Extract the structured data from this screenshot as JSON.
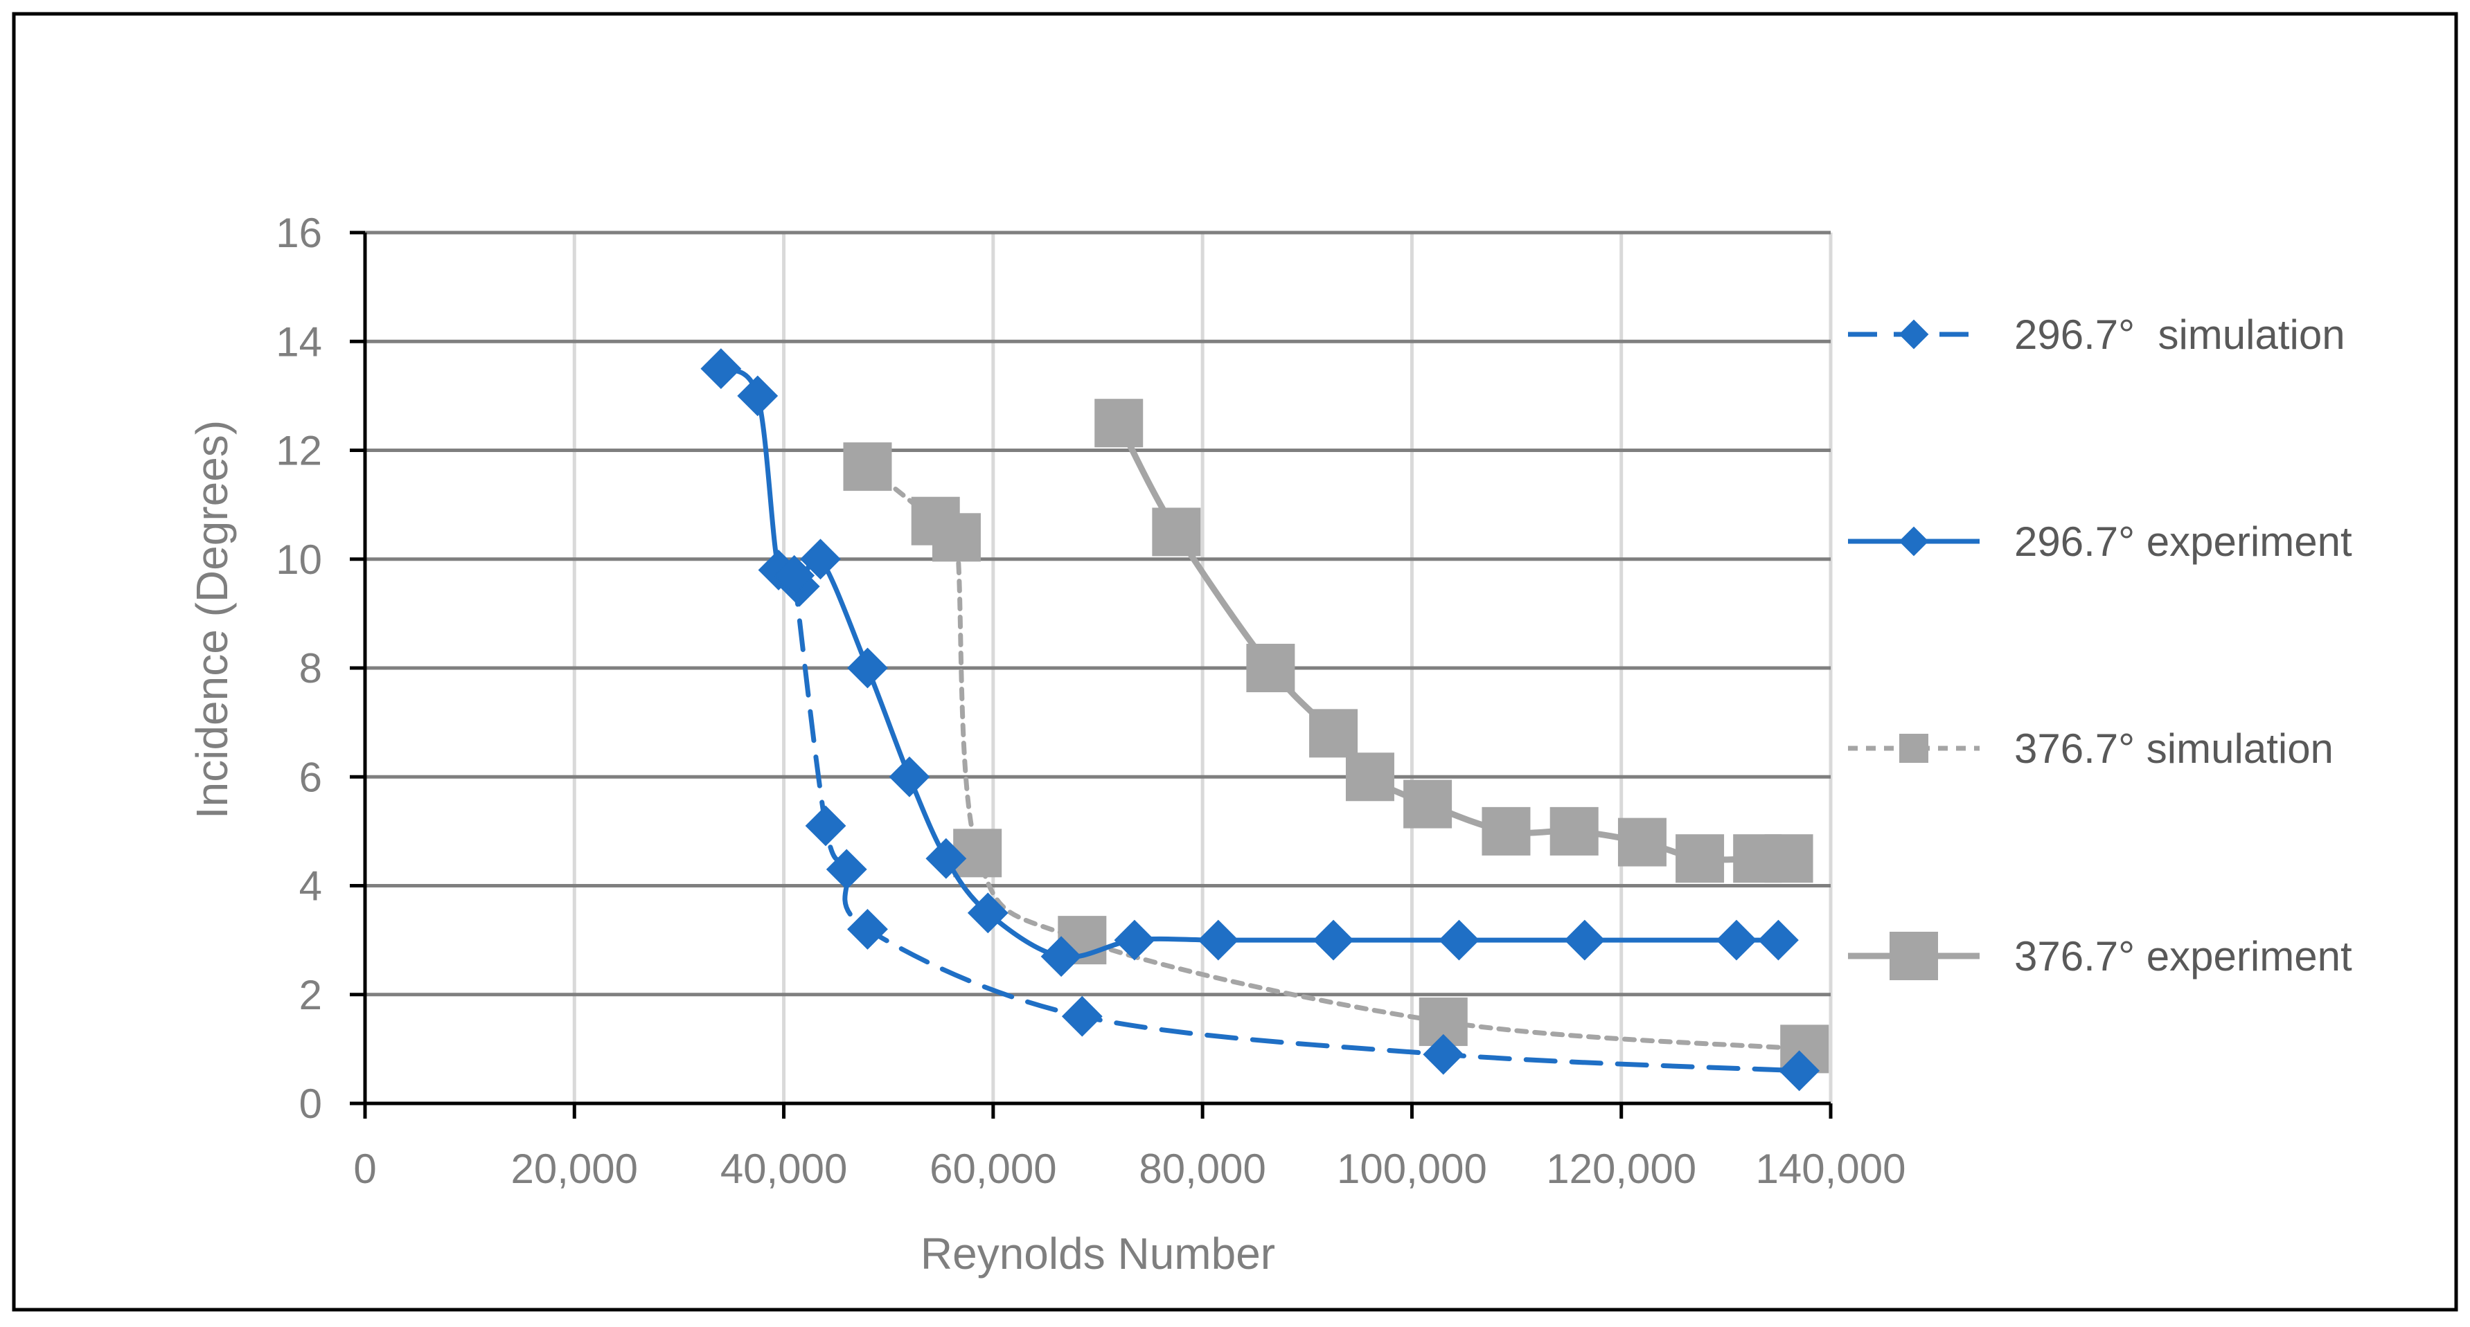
{
  "chart_data": {
    "type": "line",
    "title": "",
    "xlabel": "Reynolds Number",
    "ylabel": "Incidence (Degrees)",
    "xlim": [
      0,
      140000
    ],
    "ylim": [
      0,
      16
    ],
    "xticks": [
      0,
      20000,
      40000,
      60000,
      80000,
      100000,
      120000,
      140000
    ],
    "xtick_labels": [
      "0",
      "20,000",
      "40,000",
      "60,000",
      "80,000",
      "100,000",
      "120,000",
      "140,000"
    ],
    "yticks": [
      0,
      2,
      4,
      6,
      8,
      10,
      12,
      14,
      16
    ],
    "ytick_labels": [
      "0",
      "2",
      "4",
      "6",
      "8",
      "10",
      "12",
      "14",
      "16"
    ],
    "grid": true,
    "legend_position": "right",
    "series": [
      {
        "name": "296.7°  simulation",
        "color": "#1F6FC5",
        "line_style": "dashed",
        "marker": "diamond",
        "x": [
          41000,
          44000,
          46000,
          48000,
          68500,
          103000,
          137000
        ],
        "y": [
          9.7,
          5.1,
          4.3,
          3.2,
          1.6,
          0.9,
          0.6
        ]
      },
      {
        "name": "296.7° experiment",
        "color": "#1F6FC5",
        "line_style": "solid",
        "marker": "diamond",
        "x": [
          34000,
          37500,
          39500,
          41500,
          43500,
          48000,
          52000,
          55500,
          59500,
          66500,
          73500,
          81500,
          92500,
          104500,
          116500,
          131000,
          135000
        ],
        "y": [
          13.5,
          13.0,
          9.8,
          9.5,
          10.0,
          8.0,
          6.0,
          4.5,
          3.5,
          2.7,
          3.0,
          3.0,
          3.0,
          3.0,
          3.0,
          3.0,
          3.0
        ]
      },
      {
        "name": "376.7° simulation",
        "color": "#A5A5A5",
        "line_style": "dotted",
        "marker": "square",
        "x": [
          48000,
          54500,
          56500,
          58500,
          68500,
          103000,
          137500
        ],
        "y": [
          11.7,
          10.7,
          10.4,
          4.6,
          3.0,
          1.5,
          1.0
        ]
      },
      {
        "name": "376.7° experiment",
        "color": "#A5A5A5",
        "line_style": "solid",
        "marker": "square",
        "x": [
          72000,
          77500,
          86500,
          92500,
          96000,
          101500,
          109000,
          115500,
          122000,
          127500,
          133000,
          136000
        ],
        "y": [
          12.5,
          10.5,
          8.0,
          6.8,
          6.0,
          5.5,
          5.0,
          5.0,
          4.8,
          4.5,
          4.5,
          4.5
        ]
      }
    ]
  }
}
